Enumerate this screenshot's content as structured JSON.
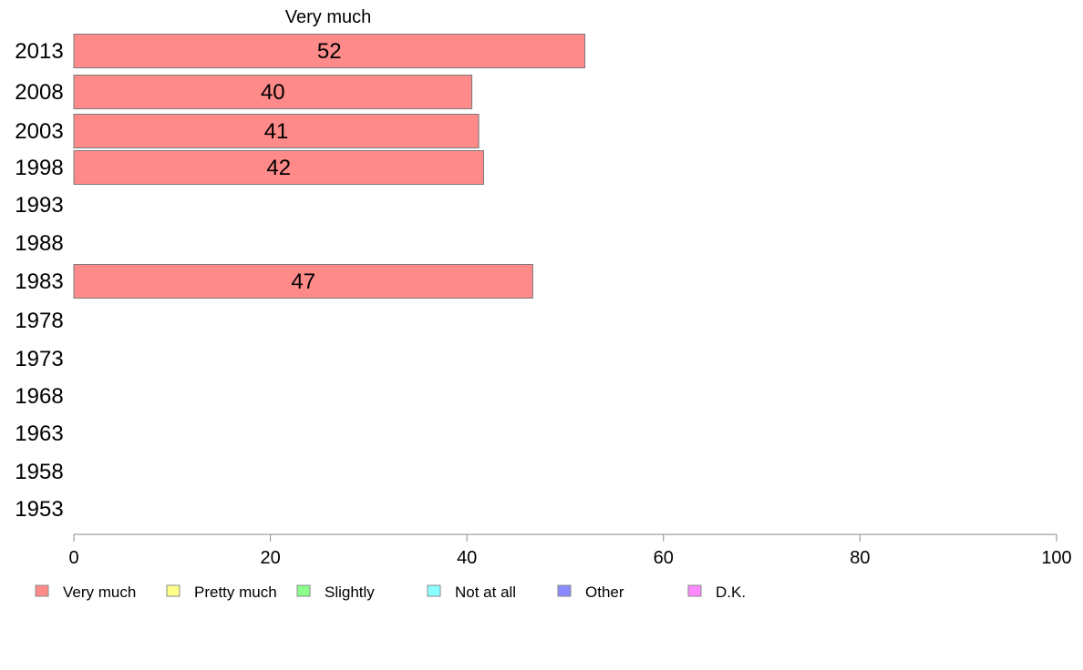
{
  "chart_data": {
    "type": "bar",
    "orientation": "horizontal",
    "title": "Very much",
    "categories": [
      "2013",
      "2008",
      "2003",
      "1998",
      "1993",
      "1988",
      "1983",
      "1978",
      "1973",
      "1968",
      "1963",
      "1958",
      "1953"
    ],
    "series": [
      {
        "name": "Very much",
        "color": "#ff8a8a",
        "values": [
          52,
          40.5,
          41.2,
          41.7,
          null,
          null,
          46.7,
          null,
          null,
          null,
          null,
          null,
          null
        ],
        "labels": [
          "52",
          "40",
          "41",
          "42",
          "",
          "",
          "47",
          "",
          "",
          "",
          "",
          "",
          ""
        ]
      }
    ],
    "xlim": [
      0,
      100
    ],
    "xticks": [
      0,
      20,
      40,
      60,
      80,
      100
    ],
    "grid": false,
    "legend_position": "bottom",
    "legend": [
      {
        "label": "Very much",
        "color": "#ff8a8a"
      },
      {
        "label": "Pretty much",
        "color": "#ffff8a"
      },
      {
        "label": "Slightly",
        "color": "#8aff8a"
      },
      {
        "label": "Not at all",
        "color": "#8affff"
      },
      {
        "label": "Other",
        "color": "#8a8aff"
      },
      {
        "label": "D.K.",
        "color": "#ff8aff"
      }
    ]
  }
}
